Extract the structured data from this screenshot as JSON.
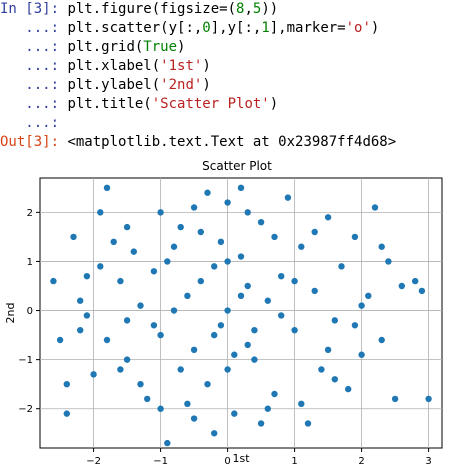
{
  "notebook": {
    "in_prompt": "In [3]:",
    "cont_prompt": "...:",
    "out_prompt": "Out[3]:",
    "lines": [
      [
        {
          "t": "plt.figure(figsize=(",
          "c": "code-text"
        },
        {
          "t": "8",
          "c": "num"
        },
        {
          "t": ",",
          "c": "code-text"
        },
        {
          "t": "5",
          "c": "num"
        },
        {
          "t": "))",
          "c": "code-text"
        }
      ],
      [
        {
          "t": "plt.scatter(y[:,",
          "c": "code-text"
        },
        {
          "t": "0",
          "c": "num"
        },
        {
          "t": "],y[:,",
          "c": "code-text"
        },
        {
          "t": "1",
          "c": "num"
        },
        {
          "t": "],marker=",
          "c": "code-text"
        },
        {
          "t": "'o'",
          "c": "str"
        },
        {
          "t": ")",
          "c": "code-text"
        }
      ],
      [
        {
          "t": "plt.grid(",
          "c": "code-text"
        },
        {
          "t": "True",
          "c": "kw"
        },
        {
          "t": ")",
          "c": "code-text"
        }
      ],
      [
        {
          "t": "plt.xlabel(",
          "c": "code-text"
        },
        {
          "t": "'1st'",
          "c": "str"
        },
        {
          "t": ")",
          "c": "code-text"
        }
      ],
      [
        {
          "t": "plt.ylabel(",
          "c": "code-text"
        },
        {
          "t": "'2nd'",
          "c": "str"
        },
        {
          "t": ")",
          "c": "code-text"
        }
      ],
      [
        {
          "t": "plt.title(",
          "c": "code-text"
        },
        {
          "t": "'Scatter Plot'",
          "c": "str"
        },
        {
          "t": ")",
          "c": "code-text"
        }
      ],
      []
    ],
    "output": "<matplotlib.text.Text at 0x23987ff4d68>"
  },
  "chart_data": {
    "type": "scatter",
    "title": "Scatter Plot",
    "xlabel": "1st",
    "ylabel": "2nd",
    "xlim": [
      -2.8,
      3.2
    ],
    "ylim": [
      -2.8,
      2.7
    ],
    "xticks": [
      -2,
      -1,
      0,
      1,
      2,
      3
    ],
    "yticks": [
      -2,
      -1,
      0,
      1,
      2
    ],
    "xtick_labels": [
      "−2",
      "−1",
      "0",
      "1",
      "2",
      "3"
    ],
    "ytick_labels": [
      "−2",
      "−1",
      "0",
      "1",
      "2"
    ],
    "grid": true,
    "marker_color": "#1f77b4",
    "series": [
      {
        "points": [
          [
            -2.6,
            0.6
          ],
          [
            -2.4,
            -1.5
          ],
          [
            -2.4,
            -2.1
          ],
          [
            -2.3,
            1.5
          ],
          [
            -2.2,
            -0.4
          ],
          [
            -2.1,
            0.7
          ],
          [
            -2.5,
            -0.6
          ],
          [
            -2.0,
            -1.3
          ],
          [
            -1.9,
            2.0
          ],
          [
            -1.8,
            -0.6
          ],
          [
            -1.8,
            2.5
          ],
          [
            -1.7,
            1.4
          ],
          [
            -1.6,
            0.6
          ],
          [
            -1.5,
            -0.2
          ],
          [
            -1.5,
            -1.0
          ],
          [
            -1.4,
            1.2
          ],
          [
            -1.3,
            0.1
          ],
          [
            -1.2,
            -1.8
          ],
          [
            -1.1,
            0.8
          ],
          [
            -1.0,
            2.0
          ],
          [
            -1.0,
            -0.5
          ],
          [
            -0.9,
            -2.7
          ],
          [
            -0.8,
            1.3
          ],
          [
            -0.7,
            -1.2
          ],
          [
            -0.6,
            0.3
          ],
          [
            -0.5,
            2.1
          ],
          [
            -0.5,
            -0.8
          ],
          [
            -0.4,
            1.6
          ],
          [
            -0.3,
            -1.5
          ],
          [
            -0.2,
            0.9
          ],
          [
            -0.1,
            -0.3
          ],
          [
            0.0,
            2.2
          ],
          [
            0.0,
            0.0
          ],
          [
            0.1,
            -2.1
          ],
          [
            0.2,
            1.1
          ],
          [
            0.3,
            -0.7
          ],
          [
            0.3,
            0.5
          ],
          [
            0.4,
            -1.0
          ],
          [
            0.5,
            1.8
          ],
          [
            0.6,
            0.2
          ],
          [
            0.7,
            -1.7
          ],
          [
            0.8,
            0.7
          ],
          [
            0.9,
            2.3
          ],
          [
            1.0,
            -0.4
          ],
          [
            1.1,
            1.3
          ],
          [
            1.2,
            -2.3
          ],
          [
            1.3,
            0.4
          ],
          [
            1.4,
            -1.2
          ],
          [
            1.5,
            1.9
          ],
          [
            1.6,
            -0.2
          ],
          [
            1.7,
            0.9
          ],
          [
            1.8,
            -1.6
          ],
          [
            1.9,
            1.5
          ],
          [
            2.0,
            -0.9
          ],
          [
            2.1,
            0.3
          ],
          [
            2.2,
            2.1
          ],
          [
            2.3,
            -0.6
          ],
          [
            2.4,
            1.0
          ],
          [
            2.5,
            -1.8
          ],
          [
            2.6,
            0.5
          ],
          [
            2.8,
            0.6
          ],
          [
            3.0,
            -1.8
          ],
          [
            2.9,
            0.4
          ],
          [
            -0.3,
            2.4
          ],
          [
            0.2,
            2.5
          ],
          [
            -0.1,
            1.4
          ],
          [
            0.1,
            -0.9
          ],
          [
            -0.6,
            -1.9
          ],
          [
            0.6,
            -2.0
          ],
          [
            -1.3,
            -1.5
          ],
          [
            1.3,
            1.6
          ],
          [
            -0.8,
            0.0
          ],
          [
            0.8,
            -0.1
          ],
          [
            -0.2,
            -0.5
          ],
          [
            0.2,
            0.3
          ],
          [
            -0.4,
            0.6
          ],
          [
            0.4,
            -0.4
          ],
          [
            0.0,
            1.0
          ],
          [
            0.0,
            -1.2
          ],
          [
            -1.1,
            -0.3
          ],
          [
            1.0,
            0.6
          ],
          [
            -0.7,
            1.7
          ],
          [
            0.7,
            1.5
          ],
          [
            -1.5,
            1.7
          ],
          [
            1.6,
            -1.4
          ],
          [
            -2.1,
            -0.1
          ],
          [
            2.0,
            0.1
          ],
          [
            -1.9,
            0.9
          ],
          [
            1.9,
            -0.3
          ],
          [
            -0.5,
            -2.2
          ],
          [
            0.5,
            -2.3
          ],
          [
            -1.0,
            -2.0
          ],
          [
            1.1,
            -1.9
          ],
          [
            -0.2,
            -2.5
          ],
          [
            0.3,
            2.0
          ],
          [
            -2.2,
            0.2
          ],
          [
            2.3,
            1.3
          ],
          [
            -1.6,
            -1.2
          ],
          [
            1.5,
            -0.8
          ],
          [
            -0.9,
            1.0
          ]
        ]
      }
    ]
  }
}
